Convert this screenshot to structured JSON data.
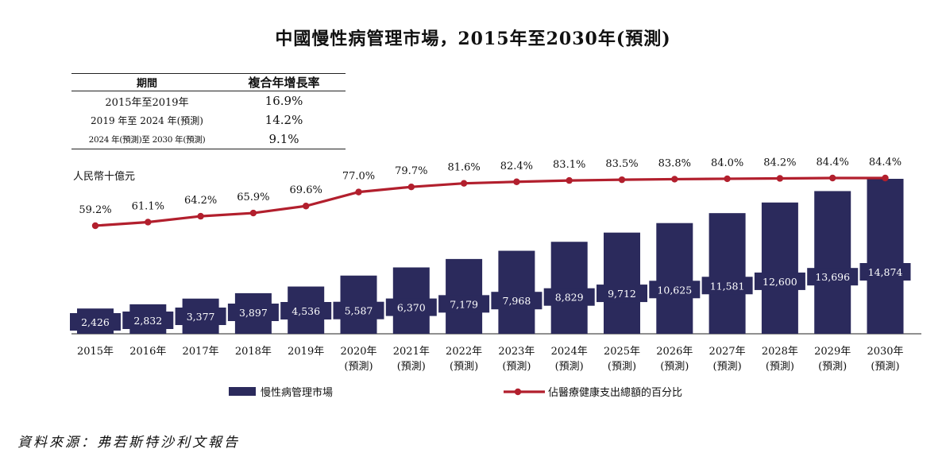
{
  "title": "中國慢性病管理市場，2015年至2030年(預測)",
  "cagr_table": {
    "headers": [
      "期間",
      "複合年增長率"
    ],
    "rows": [
      {
        "period": "2015年至2019年",
        "rate": "16.9%"
      },
      {
        "period": "2019 年至 2024 年(預測)",
        "rate": "14.2%"
      },
      {
        "period": "2024 年(預測)至 2030 年(預測)",
        "rate": "9.1%"
      }
    ]
  },
  "unit": "人民幣十億元",
  "source": "資料來源：弗若斯特沙利文報告",
  "chart_data": {
    "type": "bar",
    "categories": [
      "2015年",
      "2016年",
      "2017年",
      "2018年",
      "2019年",
      "2020年",
      "2021年",
      "2022年",
      "2023年",
      "2024年",
      "2025年",
      "2026年",
      "2027年",
      "2028年",
      "2029年",
      "2030年"
    ],
    "category_sublabels": [
      "",
      "",
      "",
      "",
      "",
      "(預測)",
      "(預測)",
      "(預測)",
      "(預測)",
      "(預測)",
      "(預測)",
      "(預測)",
      "(預測)",
      "(預測)",
      "(預測)",
      "(預測)"
    ],
    "series": [
      {
        "name": "慢性病管理市場",
        "type": "bar",
        "color": "#2b2a5c",
        "values": [
          2426,
          2832,
          3377,
          3897,
          4536,
          5587,
          6370,
          7179,
          7968,
          8829,
          9712,
          10625,
          11581,
          12600,
          13696,
          14874
        ],
        "labels": [
          "2,426",
          "2,832",
          "3,377",
          "3,897",
          "4,536",
          "5,587",
          "6,370",
          "7,179",
          "7,968",
          "8,829",
          "9,712",
          "10,625",
          "11,581",
          "12,600",
          "13,696",
          "14,874"
        ]
      },
      {
        "name": "佔醫療健康支出總額的百分比",
        "type": "line",
        "color": "#b21f2d",
        "values": [
          59.2,
          61.1,
          64.2,
          65.9,
          69.6,
          77.0,
          79.7,
          81.6,
          82.4,
          83.1,
          83.5,
          83.8,
          84.0,
          84.2,
          84.4,
          84.4
        ],
        "labels": [
          "59.2%",
          "61.1%",
          "64.2%",
          "65.9%",
          "69.6%",
          "77.0%",
          "79.7%",
          "81.6%",
          "82.4%",
          "83.1%",
          "83.5%",
          "83.8%",
          "84.0%",
          "84.2%",
          "84.4%",
          "84.4%"
        ]
      }
    ],
    "legend_position": "bottom",
    "grid": false
  }
}
